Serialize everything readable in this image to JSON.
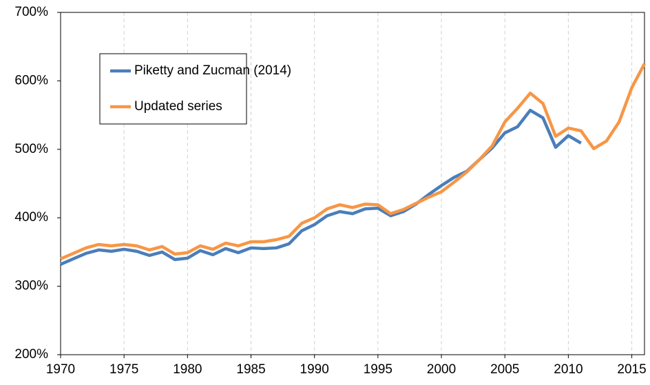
{
  "chart_data": {
    "type": "line",
    "x": [
      1970,
      1971,
      1972,
      1973,
      1974,
      1975,
      1976,
      1977,
      1978,
      1979,
      1980,
      1981,
      1982,
      1983,
      1984,
      1985,
      1986,
      1987,
      1988,
      1989,
      1990,
      1991,
      1992,
      1993,
      1994,
      1995,
      1996,
      1997,
      1998,
      1999,
      2000,
      2001,
      2002,
      2003,
      2004,
      2005,
      2006,
      2007,
      2008,
      2009,
      2010,
      2011,
      2012,
      2013,
      2014,
      2015,
      2016
    ],
    "series": [
      {
        "name": "Piketty and Zucman (2014)",
        "color": "#4a7ebb",
        "values": [
          332,
          340,
          348,
          353,
          351,
          354,
          351,
          345,
          350,
          339,
          341,
          352,
          346,
          355,
          349,
          356,
          355,
          356,
          362,
          381,
          390,
          403,
          409,
          406,
          413,
          414,
          403,
          409,
          420,
          434,
          447,
          459,
          468,
          485,
          502,
          524,
          533,
          557,
          546,
          503,
          520,
          509,
          null,
          null,
          null,
          null,
          null
        ]
      },
      {
        "name": "Updated series",
        "color": "#f79646",
        "values": [
          340,
          348,
          356,
          361,
          359,
          361,
          359,
          353,
          358,
          347,
          349,
          359,
          354,
          363,
          359,
          365,
          365,
          368,
          373,
          392,
          400,
          413,
          419,
          415,
          420,
          419,
          406,
          412,
          421,
          430,
          438,
          452,
          467,
          485,
          505,
          540,
          560,
          582,
          567,
          519,
          531,
          527,
          501,
          512,
          540,
          590,
          625
        ]
      }
    ],
    "xlim": [
      1970,
      2016
    ],
    "xticks": [
      1970,
      1975,
      1980,
      1985,
      1990,
      1995,
      2000,
      2005,
      2010,
      2015
    ],
    "ylim": [
      200,
      700
    ],
    "yticks": [
      {
        "value": 200,
        "label": "200%"
      },
      {
        "value": 300,
        "label": "300%"
      },
      {
        "value": 400,
        "label": "400%"
      },
      {
        "value": 500,
        "label": "500%"
      },
      {
        "value": 600,
        "label": "600%"
      },
      {
        "value": 700,
        "label": "700%"
      }
    ],
    "grid": true
  }
}
